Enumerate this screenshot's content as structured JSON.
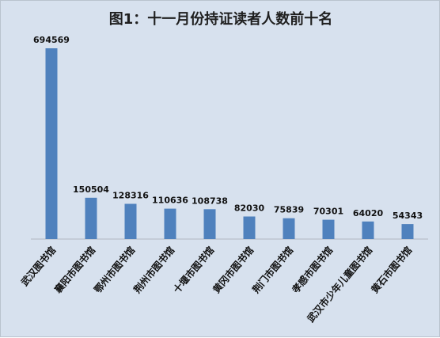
{
  "chart_data": {
    "type": "bar",
    "title": "图1：十一月份持证读者人数前十名",
    "categories": [
      "武汉图书馆",
      "襄阳市图书馆",
      "鄂州市图书馆",
      "荆州市图书馆",
      "十堰市图书馆",
      "黄冈市图书馆",
      "荆门市图书馆",
      "孝感市图书馆",
      "武汉市少年儿童图书馆",
      "黄石市图书馆"
    ],
    "values": [
      694569,
      150504,
      128316,
      110636,
      108738,
      82030,
      75839,
      70301,
      64020,
      54343
    ],
    "ylim": [
      0,
      694569
    ],
    "grid": false,
    "legend": "none",
    "colors": {
      "bar": "#4f81bd",
      "background": "#d7e1ee"
    }
  }
}
